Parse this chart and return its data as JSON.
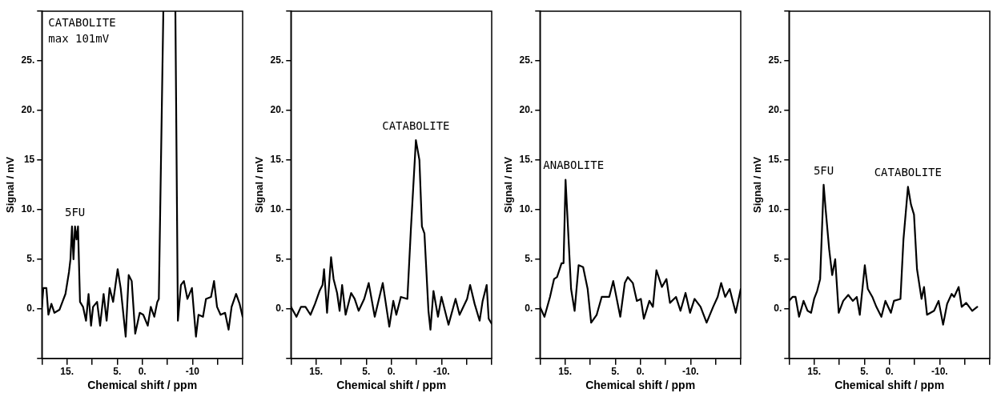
{
  "chart_data": [
    {
      "type": "line",
      "xlabel": "Chemical shift / ppm",
      "ylabel": "Signal / mV",
      "color": "#000000",
      "marker": "none",
      "line_style": "solid",
      "legend": false,
      "grid": false,
      "xlim": [
        20,
        -20
      ],
      "ylim": [
        -5,
        30
      ],
      "xticks": [
        {
          "value": 20,
          "label": null
        },
        {
          "value": 15,
          "label": "15."
        },
        {
          "value": 10,
          "label": null
        },
        {
          "value": 5,
          "label": "5."
        },
        {
          "value": 0,
          "label": "0."
        },
        {
          "value": -5,
          "label": null
        },
        {
          "value": -10,
          "label": "-10"
        },
        {
          "value": -15,
          "label": null
        },
        {
          "value": -20,
          "label": null
        }
      ],
      "yticks": [
        {
          "value": -5,
          "label": null
        },
        {
          "value": 0,
          "label": "0."
        },
        {
          "value": 5,
          "label": "5."
        },
        {
          "value": 10,
          "label": "10."
        },
        {
          "value": 15,
          "label": "15"
        },
        {
          "value": 20,
          "label": "20."
        },
        {
          "value": 25,
          "label": "25."
        },
        {
          "value": 30,
          "label": null
        }
      ],
      "x": [
        20.0,
        19.7,
        19.1,
        18.7,
        18.1,
        17.5,
        16.5,
        15.9,
        15.3,
        14.6,
        14.3,
        14.0,
        13.7,
        13.4,
        13.1,
        12.8,
        12.4,
        11.8,
        11.2,
        10.7,
        10.2,
        9.8,
        9.0,
        8.4,
        7.7,
        7.1,
        6.5,
        5.8,
        4.9,
        4.3,
        3.3,
        2.7,
        2.1,
        1.4,
        0.5,
        -0.2,
        -1.1,
        -1.7,
        -2.4,
        -3.0,
        -3.3,
        -4.2,
        -5.4,
        -6.6,
        -7.1,
        -7.7,
        -8.3,
        -9.0,
        -9.9,
        -10.7,
        -11.2,
        -12.1,
        -12.7,
        -13.7,
        -14.3,
        -14.9,
        -15.6,
        -16.5,
        -17.2,
        -17.8,
        -18.7,
        -19.4,
        -20.0
      ],
      "values": [
        0.2,
        2.1,
        2.1,
        -0.6,
        0.5,
        -0.4,
        -0.1,
        0.7,
        1.5,
        3.7,
        5.0,
        8.3,
        5.0,
        8.3,
        7.0,
        8.3,
        0.7,
        0.2,
        -1.2,
        1.5,
        -1.7,
        0.2,
        0.7,
        -1.7,
        1.5,
        -1.2,
        2.1,
        0.7,
        4.0,
        2.1,
        -2.8,
        3.4,
        2.8,
        -2.5,
        -0.4,
        -0.6,
        -1.7,
        0.2,
        -0.8,
        0.7,
        1.0,
        30,
        null,
        30,
        -1.2,
        2.4,
        2.8,
        1.0,
        2.1,
        -2.8,
        -0.6,
        -0.8,
        1.0,
        1.2,
        2.8,
        0.2,
        -0.6,
        -0.4,
        -2.1,
        0.2,
        1.5,
        0.5,
        -0.8
      ],
      "annotations": [
        "CATABOLITE",
        "max 101mV",
        {
          "text": "5FU",
          "x": 13.4,
          "y": 8.3
        }
      ]
    },
    {
      "type": "line",
      "xlabel": "Chemical shift / ppm",
      "ylabel": "Signal / mV",
      "color": "#000000",
      "marker": "none",
      "line_style": "solid",
      "legend": false,
      "grid": false,
      "xlim": [
        20,
        -20
      ],
      "ylim": [
        -5,
        30
      ],
      "xticks": [
        {
          "value": 20,
          "label": null
        },
        {
          "value": 15,
          "label": "15."
        },
        {
          "value": 10,
          "label": null
        },
        {
          "value": 5,
          "label": "5."
        },
        {
          "value": 0,
          "label": "0."
        },
        {
          "value": -5,
          "label": null
        },
        {
          "value": -10,
          "label": "-10."
        },
        {
          "value": -15,
          "label": null
        },
        {
          "value": -20,
          "label": null
        }
      ],
      "yticks": [
        {
          "value": -5,
          "label": null
        },
        {
          "value": 0,
          "label": "0."
        },
        {
          "value": 5,
          "label": "5."
        },
        {
          "value": 10,
          "label": "10."
        },
        {
          "value": 15,
          "label": "15."
        },
        {
          "value": 20,
          "label": "20."
        },
        {
          "value": 25,
          "label": "25."
        },
        {
          "value": 30,
          "label": null
        }
      ],
      "x": [
        20.0,
        18.9,
        18.0,
        17.1,
        16.1,
        15.2,
        14.3,
        13.7,
        13.4,
        12.8,
        12.0,
        11.5,
        10.8,
        10.3,
        9.8,
        9.1,
        8.0,
        7.3,
        6.5,
        5.4,
        4.5,
        3.3,
        1.7,
        0.4,
        -0.4,
        -1.0,
        -1.9,
        -3.2,
        -3.9,
        -4.9,
        -5.6,
        -6.1,
        -6.6,
        -7.4,
        -7.8,
        -8.4,
        -9.3,
        -10.0,
        -11.4,
        -12.8,
        -13.6,
        -15.1,
        -15.7,
        -16.6,
        -17.6,
        -18.2,
        -19.0,
        -19.4,
        -20.0
      ],
      "values": [
        0.2,
        -0.8,
        0.2,
        0.2,
        -0.6,
        0.5,
        1.8,
        2.4,
        4.0,
        -0.4,
        5.2,
        3.0,
        1.6,
        -0.2,
        2.4,
        -0.6,
        1.6,
        1.0,
        -0.2,
        1.0,
        2.6,
        -0.8,
        2.6,
        -1.8,
        0.8,
        -0.6,
        1.2,
        1.0,
        8.0,
        17.0,
        15.0,
        8.3,
        7.6,
        -0.2,
        -2.1,
        1.8,
        -0.8,
        1.2,
        -1.6,
        1.0,
        -0.6,
        1.0,
        2.4,
        0.5,
        -1.2,
        0.8,
        2.4,
        -1.0,
        -1.5
      ],
      "annotations": [
        {
          "text": "CATABOLITE",
          "x": -4.9,
          "y": 17.0
        }
      ]
    },
    {
      "type": "line",
      "xlabel": "Chemical shift / ppm",
      "ylabel": "Signal / mV",
      "color": "#000000",
      "marker": "none",
      "line_style": "solid",
      "legend": false,
      "grid": false,
      "xlim": [
        20,
        -20
      ],
      "ylim": [
        -5,
        30
      ],
      "xticks": [
        {
          "value": 20,
          "label": null
        },
        {
          "value": 15,
          "label": "15."
        },
        {
          "value": 10,
          "label": null
        },
        {
          "value": 5,
          "label": "5."
        },
        {
          "value": 0,
          "label": "0."
        },
        {
          "value": -5,
          "label": null
        },
        {
          "value": -10,
          "label": "-10."
        },
        {
          "value": -15,
          "label": null
        },
        {
          "value": -20,
          "label": null
        }
      ],
      "yticks": [
        {
          "value": -5,
          "label": null
        },
        {
          "value": 0,
          "label": "0."
        },
        {
          "value": 5,
          "label": "5."
        },
        {
          "value": 10,
          "label": "10."
        },
        {
          "value": 15,
          "label": "15."
        },
        {
          "value": 20,
          "label": "20."
        },
        {
          "value": 25,
          "label": "25."
        },
        {
          "value": 30,
          "label": null
        }
      ],
      "x": [
        20.0,
        19.1,
        18.0,
        17.2,
        16.6,
        15.7,
        15.3,
        14.9,
        14.6,
        13.8,
        13.1,
        12.3,
        11.4,
        10.5,
        9.8,
        8.7,
        7.7,
        6.2,
        5.4,
        4.0,
        3.1,
        2.5,
        1.5,
        0.7,
        -0.1,
        -0.7,
        -1.8,
        -2.5,
        -3.2,
        -4.3,
        -5.2,
        -5.9,
        -7.1,
        -8.0,
        -9.0,
        -9.9,
        -10.8,
        -12.0,
        -13.2,
        -14.5,
        -15.4,
        -16.1,
        -16.9,
        -17.8,
        -19.0,
        -20.0
      ],
      "values": [
        0.2,
        -0.8,
        1.2,
        3.0,
        3.2,
        4.6,
        4.6,
        13.0,
        10.0,
        2.0,
        -0.2,
        4.4,
        4.2,
        2.0,
        -1.4,
        -0.6,
        1.2,
        1.2,
        2.8,
        -0.8,
        2.6,
        3.2,
        2.6,
        0.8,
        1.0,
        -1.0,
        0.8,
        0.2,
        3.9,
        2.2,
        3.0,
        0.6,
        1.2,
        -0.2,
        1.6,
        -0.4,
        1.0,
        0.2,
        -1.4,
        0.2,
        1.2,
        2.6,
        1.2,
        2.0,
        -0.4,
        2.0
      ],
      "annotations": [
        {
          "text": "ANABOLITE",
          "x": 14.9,
          "y": 13.0
        }
      ]
    },
    {
      "type": "line",
      "xlabel": "Chemical shift / ppm",
      "ylabel": "Signal / mV",
      "color": "#000000",
      "marker": "none",
      "line_style": "solid",
      "legend": false,
      "grid": false,
      "xlim": [
        20,
        -20
      ],
      "ylim": [
        -5,
        30
      ],
      "xticks": [
        {
          "value": 20,
          "label": null
        },
        {
          "value": 15,
          "label": "15."
        },
        {
          "value": 10,
          "label": null
        },
        {
          "value": 5,
          "label": "5."
        },
        {
          "value": 0,
          "label": "0."
        },
        {
          "value": -5,
          "label": null
        },
        {
          "value": -10,
          "label": "-10."
        },
        {
          "value": -15,
          "label": null
        },
        {
          "value": -20,
          "label": null
        }
      ],
      "yticks": [
        {
          "value": -5,
          "label": null
        },
        {
          "value": 0,
          "label": "0."
        },
        {
          "value": 5,
          "label": "5."
        },
        {
          "value": 10,
          "label": "10."
        },
        {
          "value": 15,
          "label": "15."
        },
        {
          "value": 20,
          "label": "20."
        },
        {
          "value": 25,
          "label": "25."
        },
        {
          "value": 30,
          "label": null
        }
      ],
      "x": [
        20.0,
        19.3,
        18.7,
        18.0,
        17.1,
        16.3,
        15.6,
        15.0,
        14.4,
        13.8,
        13.1,
        12.7,
        12.0,
        11.4,
        10.8,
        10.1,
        9.2,
        8.2,
        7.3,
        6.5,
        5.9,
        4.9,
        4.3,
        3.4,
        2.6,
        1.6,
        0.8,
        -0.3,
        -0.9,
        -2.2,
        -2.8,
        -3.7,
        -4.3,
        -4.9,
        -5.5,
        -6.4,
        -6.9,
        -7.5,
        -8.9,
        -9.8,
        -10.7,
        -11.5,
        -12.4,
        -12.9,
        -13.8,
        -14.4,
        -15.3,
        -16.5,
        -17.5
      ],
      "values": [
        0.8,
        1.2,
        1.2,
        -0.8,
        0.8,
        -0.2,
        -0.4,
        1.0,
        1.8,
        3.0,
        12.5,
        10.0,
        6.0,
        3.4,
        5.0,
        -0.4,
        0.8,
        1.4,
        0.8,
        1.2,
        -0.6,
        4.4,
        2.0,
        1.2,
        0.2,
        -0.8,
        0.8,
        -0.4,
        0.8,
        1.0,
        7.0,
        12.3,
        10.5,
        9.5,
        4.0,
        1.0,
        2.2,
        -0.6,
        -0.2,
        0.8,
        -1.6,
        0.5,
        1.5,
        1.2,
        2.2,
        0.2,
        0.6,
        -0.2,
        0.2
      ],
      "annotations": [
        {
          "text": "5FU",
          "x": 13.1,
          "y": 12.5
        },
        {
          "text": "CATABOLITE",
          "x": -3.7,
          "y": 12.3
        }
      ]
    }
  ]
}
